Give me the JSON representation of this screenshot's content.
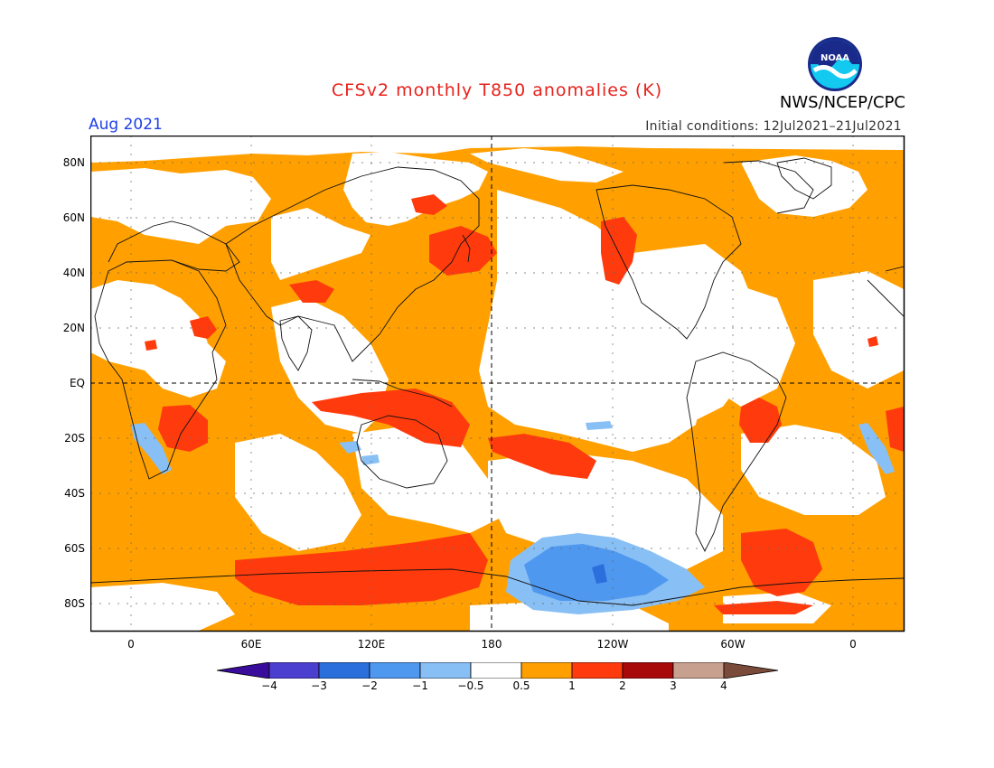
{
  "title": "CFSv2 monthly T850 anomalies (K)",
  "agency": "NWS/NCEP/CPC",
  "logo_text": "NOAA",
  "period": "Aug 2021",
  "initial_conditions": "Initial conditions: 12Jul2021–21Jul2021",
  "lat_labels": [
    "80N",
    "60N",
    "40N",
    "20N",
    "EQ",
    "20S",
    "40S",
    "60S",
    "80S"
  ],
  "lon_labels": [
    "0",
    "60E",
    "120E",
    "180",
    "120W",
    "60W",
    "0"
  ],
  "colorbar": {
    "labels": [
      "−4",
      "−3",
      "−2",
      "−1",
      "−0.5",
      "0.5",
      "1",
      "2",
      "3",
      "4"
    ],
    "colors": [
      "#3a0c9c",
      "#4b3fd0",
      "#2a6fdc",
      "#4f98ef",
      "#88bff4",
      "#ffffff",
      "#ffa000",
      "#ff3b0e",
      "#a80a0a",
      "#c8a090",
      "#7a4a3a"
    ]
  },
  "colors": {
    "title": "#e8231d",
    "period": "#1f3fe8",
    "orange": "#ffa000",
    "red": "#ff3b0e",
    "light_blue": "#88bff4",
    "mid_blue": "#4f98ef",
    "dark_blue": "#2a6fdc"
  }
}
